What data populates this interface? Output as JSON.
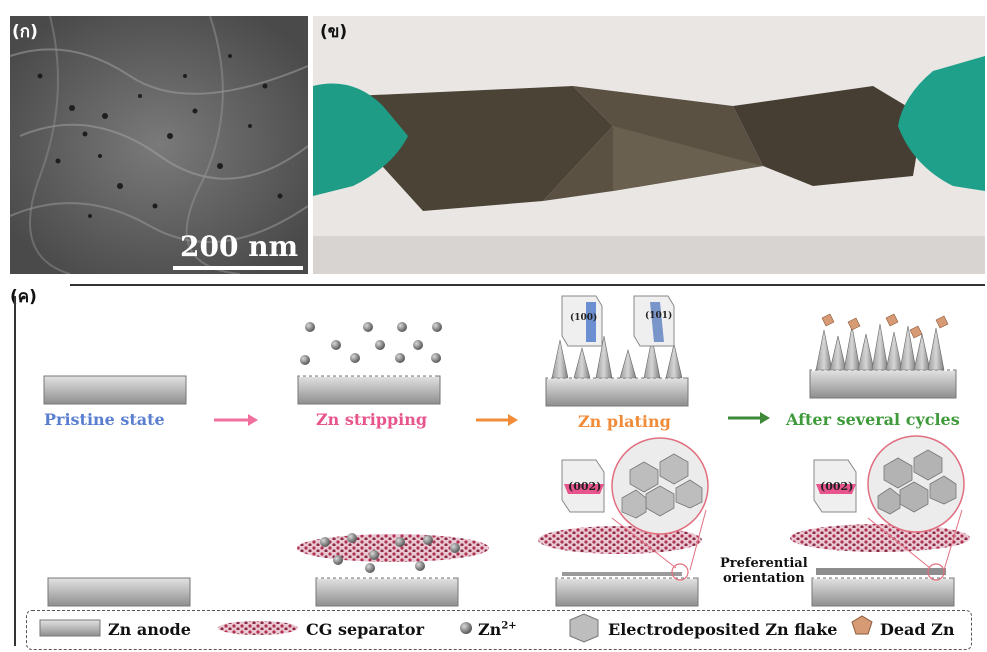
{
  "panels": {
    "a_label": "(ก)",
    "b_label": "(ข)",
    "c_label": "(ค)"
  },
  "sem": {
    "scale_label": "200 nm"
  },
  "top_row": {
    "pristine": "Pristine state",
    "stripping": "Zn stripping",
    "plating": "Zn plating",
    "after": "After several cycles",
    "facet_100": "(100)",
    "facet_101": "(101)"
  },
  "bottom_row": {
    "facet_002_a": "(002)",
    "facet_002_b": "(002)",
    "preferential": "Preferential",
    "orientation": "orientation"
  },
  "legend": {
    "zn_anode": "Zn anode",
    "cg_separator": "CG separator",
    "zn_ion": "Zn",
    "zn_ion_sup": "2+",
    "flake": "Electrodeposited Zn flake",
    "dead": "Dead Zn"
  },
  "colors": {
    "pristine": "#5b7fd0",
    "stripping": "#e8558d",
    "plating": "#f08c3a",
    "after": "#3e9a3a",
    "separator": "#c0395b",
    "glove": "#1fa08a"
  }
}
